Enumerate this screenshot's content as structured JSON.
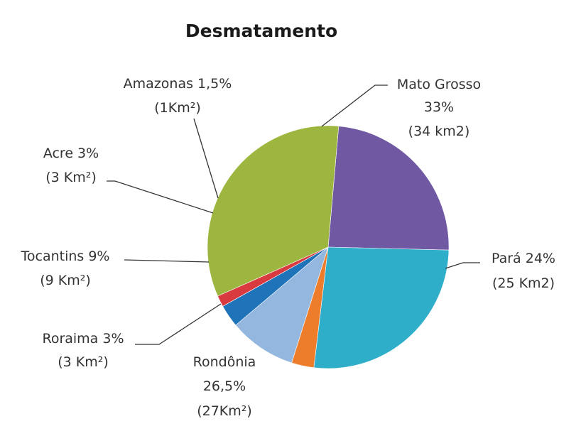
{
  "chart_data": {
    "type": "pie",
    "title": "Desmatamento",
    "start_angle_deg": 5,
    "direction": "clockwise",
    "slices": [
      {
        "category": "Pará",
        "percent": 24,
        "area_text": "(25 Km2)",
        "percent_label": "Pará 24%",
        "color": "#7059A2"
      },
      {
        "category": "Rondônia",
        "percent": 26.5,
        "area_text": "(27Km²)",
        "name_label": "Rondônia",
        "percent_label": "26,5%",
        "color": "#2FAEC9"
      },
      {
        "category": "Roraima",
        "percent": 3,
        "area_text": "(3 Km²)",
        "percent_label": "Roraima 3%",
        "color": "#ED7D2B"
      },
      {
        "category": "Tocantins",
        "percent": 9,
        "area_text": "(9 Km²)",
        "percent_label": "Tocantins 9%",
        "color": "#93B7DE"
      },
      {
        "category": "Acre",
        "percent": 3,
        "area_text": "(3 Km²)",
        "percent_label": "Acre 3%",
        "color": "#1F73B8"
      },
      {
        "category": "Amazonas",
        "percent": 1.5,
        "area_text": "(1Km²)",
        "percent_label": "Amazonas 1,5%",
        "color": "#D93A3F"
      },
      {
        "category": "Mato Grosso",
        "percent": 33,
        "area_text": "(34 km2)",
        "name_label": "Mato Grosso",
        "percent_label": "33%",
        "color": "#9DB63F"
      }
    ]
  }
}
